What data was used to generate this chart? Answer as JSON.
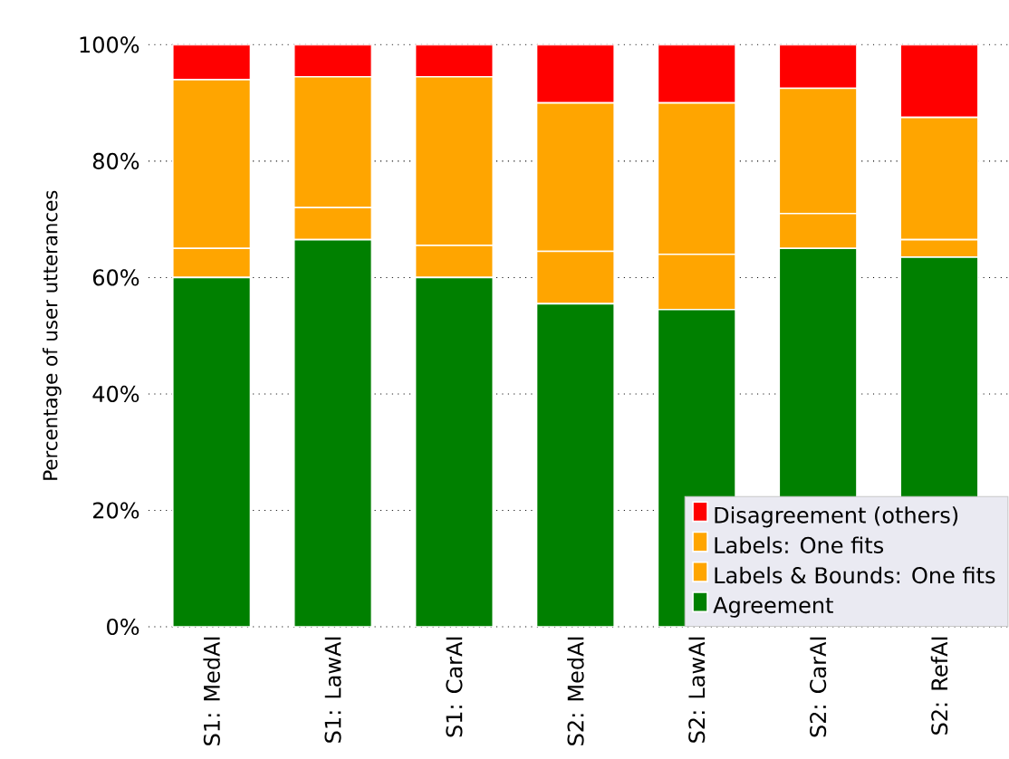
{
  "chart_data": {
    "type": "bar",
    "stacked": true,
    "ylabel": "Percentage of user utterances",
    "categories": [
      "S1: MedAI",
      "S1: LawAI",
      "S1: CarAI",
      "S2: MedAI",
      "S2: LawAI",
      "S2: CarAI",
      "S2: RefAI"
    ],
    "series": [
      {
        "name": "Agreement",
        "color": "#008000",
        "values": [
          60,
          66.5,
          60,
          55.5,
          54.5,
          65,
          63.5
        ]
      },
      {
        "name": "Labels & Bounds: One fits",
        "color": "#ffa500",
        "values": [
          5,
          5.5,
          5.5,
          9,
          9.5,
          6,
          3
        ]
      },
      {
        "name": "Labels: One fits",
        "color": "#ffa500",
        "values": [
          29,
          22.5,
          29,
          25.5,
          26,
          21.5,
          21
        ]
      },
      {
        "name": "Disagreement (others)",
        "color": "#ff0000",
        "values": [
          6,
          5.5,
          5.5,
          10,
          10,
          7.5,
          12.5
        ]
      }
    ],
    "ylim": [
      0,
      100
    ],
    "yticks": [
      {
        "value": 0,
        "label": "0%"
      },
      {
        "value": 20,
        "label": "20%"
      },
      {
        "value": 40,
        "label": "40%"
      },
      {
        "value": 60,
        "label": "60%"
      },
      {
        "value": 80,
        "label": "80%"
      },
      {
        "value": 100,
        "label": "100%"
      }
    ],
    "grid": true,
    "legend": "bottom right"
  }
}
